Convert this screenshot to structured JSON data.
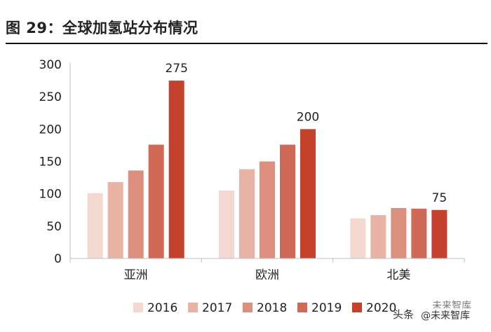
{
  "title": "图 29：全球加氢站分布情况",
  "chart_data": {
    "type": "bar",
    "categories": [
      "亚洲",
      "欧洲",
      "北美"
    ],
    "series": [
      {
        "name": "2016",
        "values": [
          101,
          105,
          62
        ],
        "color": "#f4d9d0"
      },
      {
        "name": "2017",
        "values": [
          118,
          138,
          67
        ],
        "color": "#e8b3a5"
      },
      {
        "name": "2018",
        "values": [
          136,
          150,
          78
        ],
        "color": "#dc8f7d"
      },
      {
        "name": "2019",
        "values": [
          176,
          176,
          77
        ],
        "color": "#d06a56"
      },
      {
        "name": "2020",
        "values": [
          275,
          200,
          75
        ],
        "color": "#c4422b"
      }
    ],
    "data_labels": [
      {
        "category": "亚洲",
        "series": "2020",
        "text": "275"
      },
      {
        "category": "欧洲",
        "series": "2020",
        "text": "200"
      },
      {
        "category": "北美",
        "series": "2020",
        "text": "75"
      }
    ],
    "ylim": [
      0,
      300
    ],
    "yticks": [
      0,
      50,
      100,
      150,
      200,
      250,
      300
    ],
    "legend_position": "bottom"
  },
  "watermark": {
    "head": "头条",
    "handle": "@未来智库",
    "logo_text": "未来智库"
  }
}
